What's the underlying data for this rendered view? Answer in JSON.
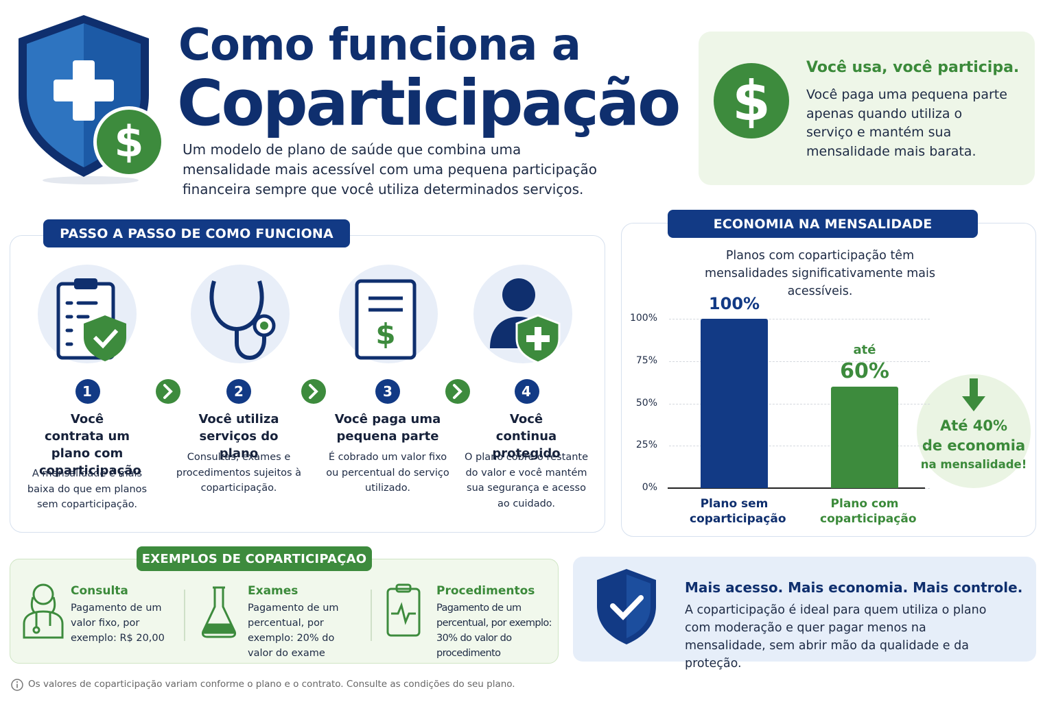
{
  "header": {
    "title_line1": "Como funciona a",
    "title_line2": "Coparticipação",
    "subtitle": "Um modelo de plano de saúde que combina uma mensalidade mais acessível com uma pequena participação financeira sempre que você utiliza determinados serviços."
  },
  "highlight": {
    "title": "Você usa, você participa.",
    "text": "Você paga uma pequena parte apenas quando utiliza o serviço e mantém sua mensalidade mais barata."
  },
  "steps": {
    "heading": "PASSO A PASSO DE COMO FUNCIONA",
    "items": [
      {
        "number": "1",
        "title": "Você contrata um plano com coparticipação",
        "text": "A mensalidade é mais baixa do que em planos sem coparticipação."
      },
      {
        "number": "2",
        "title": "Você utiliza serviços do plano",
        "text": "Consultas, exames e procedimentos sujeitos à coparticipação."
      },
      {
        "number": "3",
        "title": "Você paga uma pequena parte",
        "text": "É cobrado um valor fixo ou percentual do serviço utilizado."
      },
      {
        "number": "4",
        "title": "Você continua protegido",
        "text": "O plano cobre o restante do valor e você mantém sua segurança e acesso ao cuidado."
      }
    ]
  },
  "chart_data": {
    "type": "bar",
    "title": "ECONOMIA NA MENSALIDADE",
    "subtitle": "Planos com coparticipação têm mensalidades significativamente mais acessíveis.",
    "categories": [
      "Plano sem coparticipação",
      "Plano com coparticipação"
    ],
    "values": [
      100,
      60
    ],
    "value_labels": [
      "100%",
      "60%"
    ],
    "annotation": "até",
    "colors": [
      "#123a85",
      "#3d8b3d"
    ],
    "ylim": [
      0,
      100
    ],
    "yticks": [
      {
        "value": 0,
        "label": "0%"
      },
      {
        "value": 25,
        "label": "25%"
      },
      {
        "value": 50,
        "label": "50%"
      },
      {
        "value": 75,
        "label": "75%"
      },
      {
        "value": 100,
        "label": "100%"
      }
    ],
    "grid": true,
    "callout": [
      "Até 40%",
      "de economia",
      "na mensalidade!"
    ]
  },
  "examples": {
    "heading": "EXEMPLOS DE COPARTICIPAÇAO",
    "items": [
      {
        "title": "Consulta",
        "text": "Pagamento de um valor fixo, por exemplo: R$ 20,00"
      },
      {
        "title": "Exames",
        "text": "Pagamento de um percentual, por exemplo: 20% do valor do exame"
      },
      {
        "title": "Procedimentos",
        "text": "Pagamento de um percentual, por exemplo: 30% do valor do procedimento"
      }
    ]
  },
  "closing": {
    "title": "Mais acesso. Mais economia. Mais controle.",
    "text": "A coparticipação é ideal para quem utiliza o plano com moderação e quer pagar menos na mensalidade, sem abrir mão da qualidade e da proteção."
  },
  "footnote": "Os valores de coparticipação variam conforme o plano e o contrato. Consulte as condições do seu plano."
}
